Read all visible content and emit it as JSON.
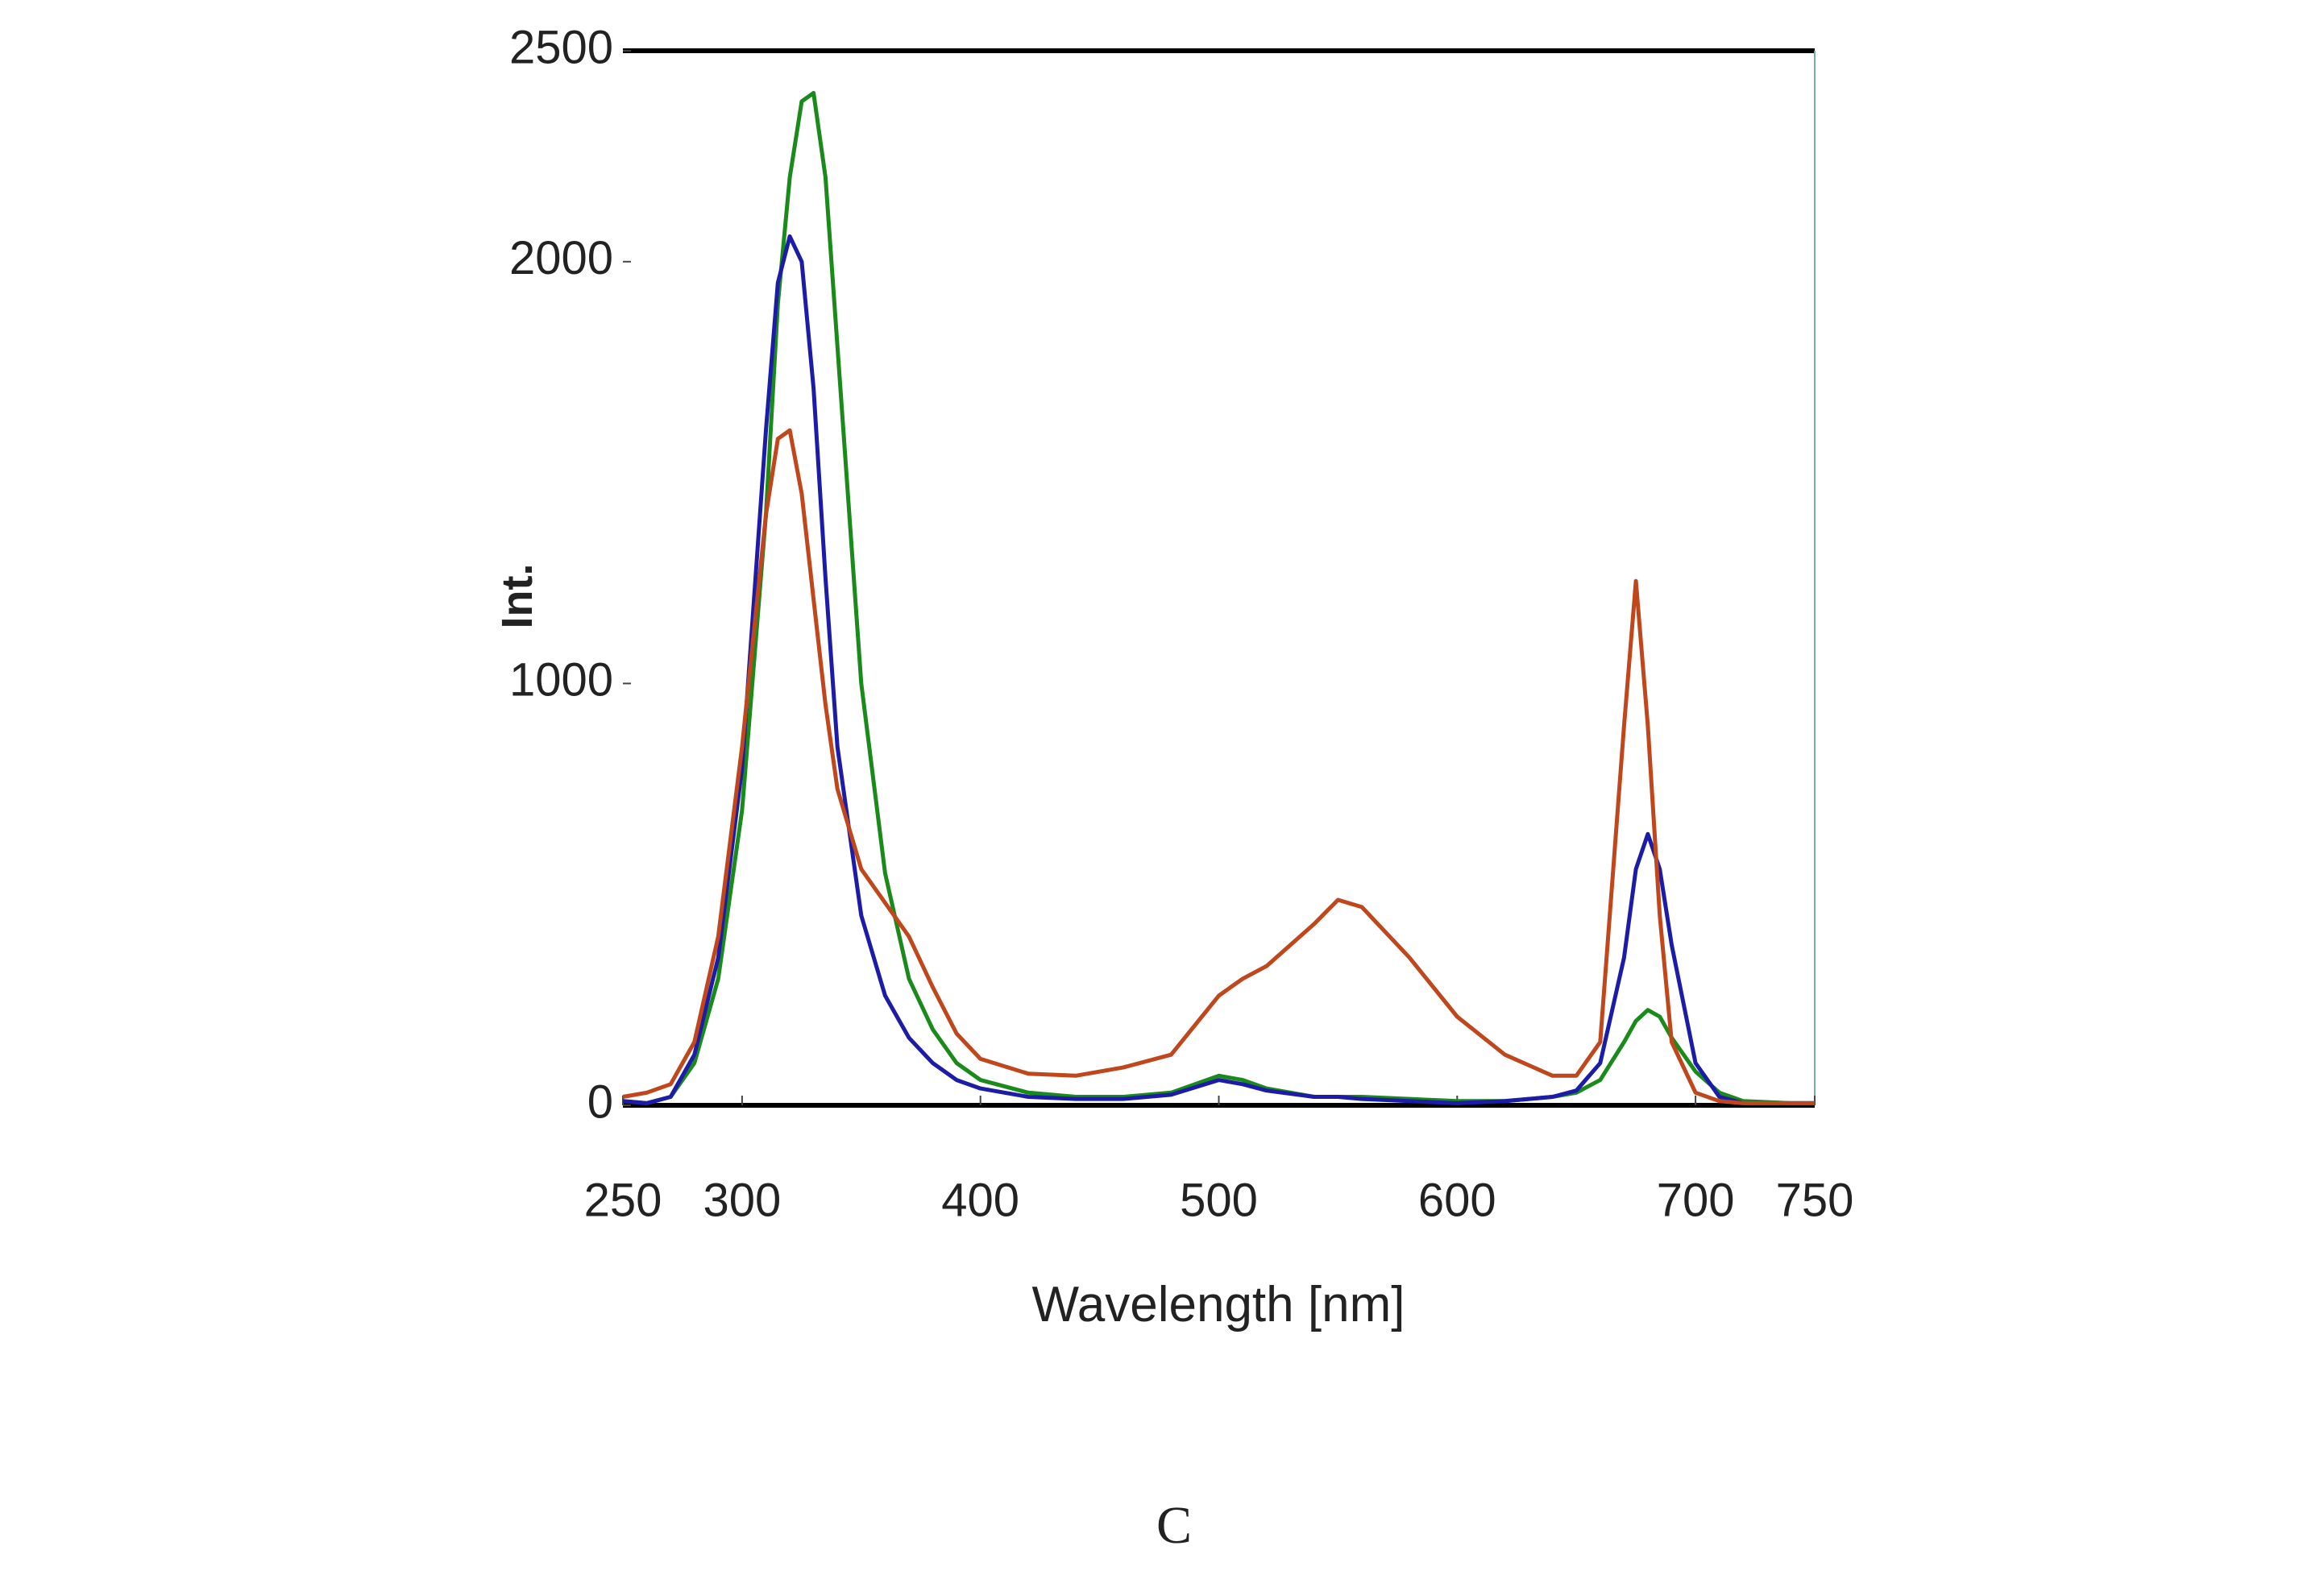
{
  "chart_data": {
    "type": "line",
    "x_label": "Wavelength [nm]",
    "y_label": "Int.",
    "caption": "C",
    "x": [
      250,
      260,
      270,
      280,
      290,
      300,
      310,
      315,
      320,
      325,
      330,
      335,
      340,
      350,
      360,
      370,
      380,
      390,
      400,
      420,
      440,
      460,
      480,
      500,
      510,
      520,
      540,
      550,
      560,
      580,
      600,
      620,
      640,
      650,
      660,
      670,
      675,
      680,
      685,
      690,
      700,
      710,
      720,
      740,
      750
    ],
    "series": [
      {
        "color": "#1a8a1a",
        "values": [
          10,
          5,
          20,
          100,
          300,
          700,
          1400,
          1900,
          2200,
          2380,
          2400,
          2200,
          1800,
          1000,
          550,
          300,
          180,
          100,
          60,
          30,
          20,
          20,
          30,
          70,
          60,
          40,
          20,
          20,
          20,
          15,
          10,
          10,
          20,
          30,
          60,
          150,
          200,
          226,
          210,
          160,
          80,
          30,
          10,
          5,
          5
        ]
      },
      {
        "color": "#1c1ca8",
        "values": [
          10,
          5,
          20,
          120,
          350,
          800,
          1600,
          1950,
          2060,
          2000,
          1700,
          1250,
          850,
          450,
          260,
          160,
          100,
          60,
          40,
          20,
          15,
          15,
          25,
          60,
          50,
          35,
          20,
          20,
          15,
          10,
          5,
          10,
          20,
          35,
          100,
          350,
          560,
          643,
          560,
          380,
          100,
          20,
          5,
          5,
          5
        ]
      },
      {
        "color": "#c0461c",
        "values": [
          20,
          30,
          50,
          150,
          400,
          850,
          1400,
          1580,
          1600,
          1450,
          1200,
          950,
          750,
          560,
          480,
          400,
          280,
          170,
          110,
          75,
          70,
          90,
          120,
          260,
          300,
          330,
          430,
          487,
          470,
          350,
          210,
          120,
          70,
          70,
          150,
          900,
          1243,
          900,
          450,
          150,
          30,
          10,
          5,
          5,
          5
        ]
      }
    ],
    "xlim": [
      250,
      750
    ],
    "ylim": [
      0,
      2500
    ],
    "xticks": [
      250,
      300,
      400,
      500,
      600,
      700,
      750
    ],
    "yticks": [
      0,
      1000,
      2000,
      2500
    ],
    "grid": false
  }
}
